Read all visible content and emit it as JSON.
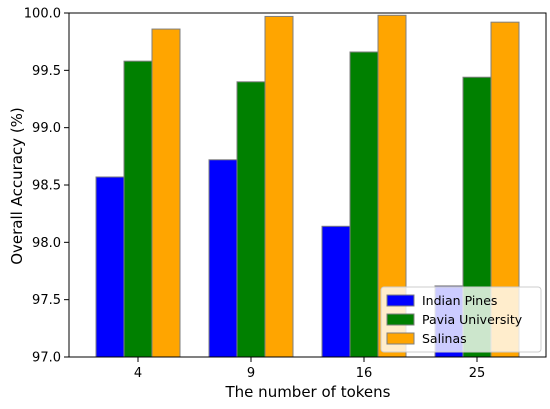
{
  "chart_data": {
    "type": "bar",
    "title": "",
    "xlabel": "The number of tokens",
    "ylabel": "Overall Accuracy (%)",
    "categories": [
      "4",
      "9",
      "16",
      "25"
    ],
    "ylim": [
      97.0,
      100.0
    ],
    "yticks": [
      "97.0",
      "97.5",
      "98.0",
      "98.5",
      "99.0",
      "99.5",
      "100.0"
    ],
    "grid": false,
    "legend_position": "lower-right",
    "series": [
      {
        "name": "Indian Pines",
        "color": "#0000ff",
        "values": [
          98.57,
          98.72,
          98.14,
          97.62
        ]
      },
      {
        "name": "Pavia University",
        "color": "#008000",
        "values": [
          99.58,
          99.4,
          99.66,
          99.44
        ]
      },
      {
        "name": "Salinas",
        "color": "#ffa500",
        "values": [
          99.86,
          99.97,
          99.98,
          99.92
        ]
      }
    ]
  }
}
